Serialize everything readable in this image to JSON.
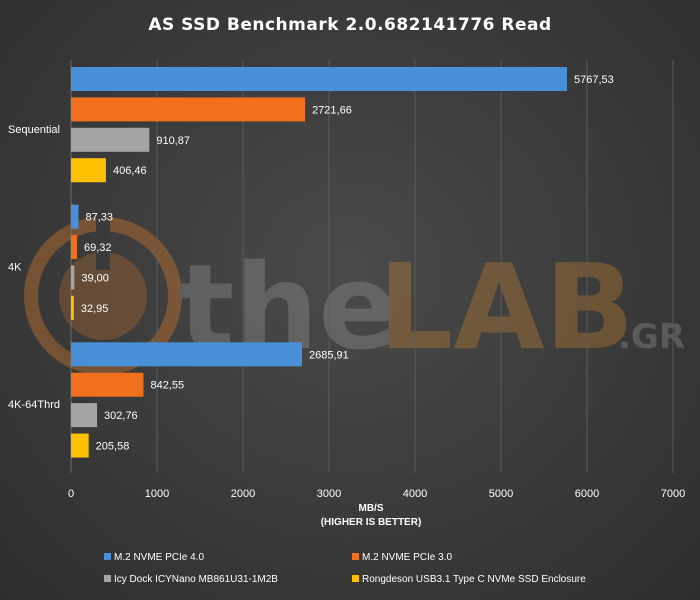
{
  "chart_data": {
    "type": "bar",
    "orientation": "horizontal",
    "title": "AS SSD  Benchmark  2.0.682141776  Read",
    "categories": [
      "Sequential",
      "4K",
      "4K-64Thrd"
    ],
    "series": [
      {
        "name": "M.2 NVME PCIe 4.0",
        "color": "#4a90d9",
        "values": [
          5767.53,
          87.33,
          2685.91
        ],
        "labels": [
          "5767,53",
          "87,33",
          "2685,91"
        ]
      },
      {
        "name": "M.2 NVME PCIe 3.0",
        "color": "#f0701e",
        "values": [
          2721.66,
          69.32,
          842.55
        ],
        "labels": [
          "2721,66",
          "69,32",
          "842,55"
        ]
      },
      {
        "name": "Icy Dock ICYNano MB861U31-1M2B",
        "color": "#a5a5a5",
        "values": [
          910.87,
          39.0,
          302.76
        ],
        "labels": [
          "910,87",
          "39,00",
          "302,76"
        ]
      },
      {
        "name": "Rongdeson USB3.1 Type C NVMe SSD Enclosure",
        "color": "#ffc000",
        "values": [
          406.46,
          32.95,
          205.58
        ],
        "labels": [
          "406,46",
          "32,95",
          "205,58"
        ]
      }
    ],
    "xlim": [
      0,
      7000
    ],
    "xticks": [
      0,
      1000,
      2000,
      3000,
      4000,
      5000,
      6000,
      7000
    ],
    "xlabel_line1": "MB/S",
    "xlabel_line2": "(HIGHER IS BETTER)",
    "grid": "vertical",
    "legend_position": "bottom"
  },
  "watermark": {
    "text_the": "the",
    "text_lab": "LAB",
    "text_gr": ".GR"
  }
}
